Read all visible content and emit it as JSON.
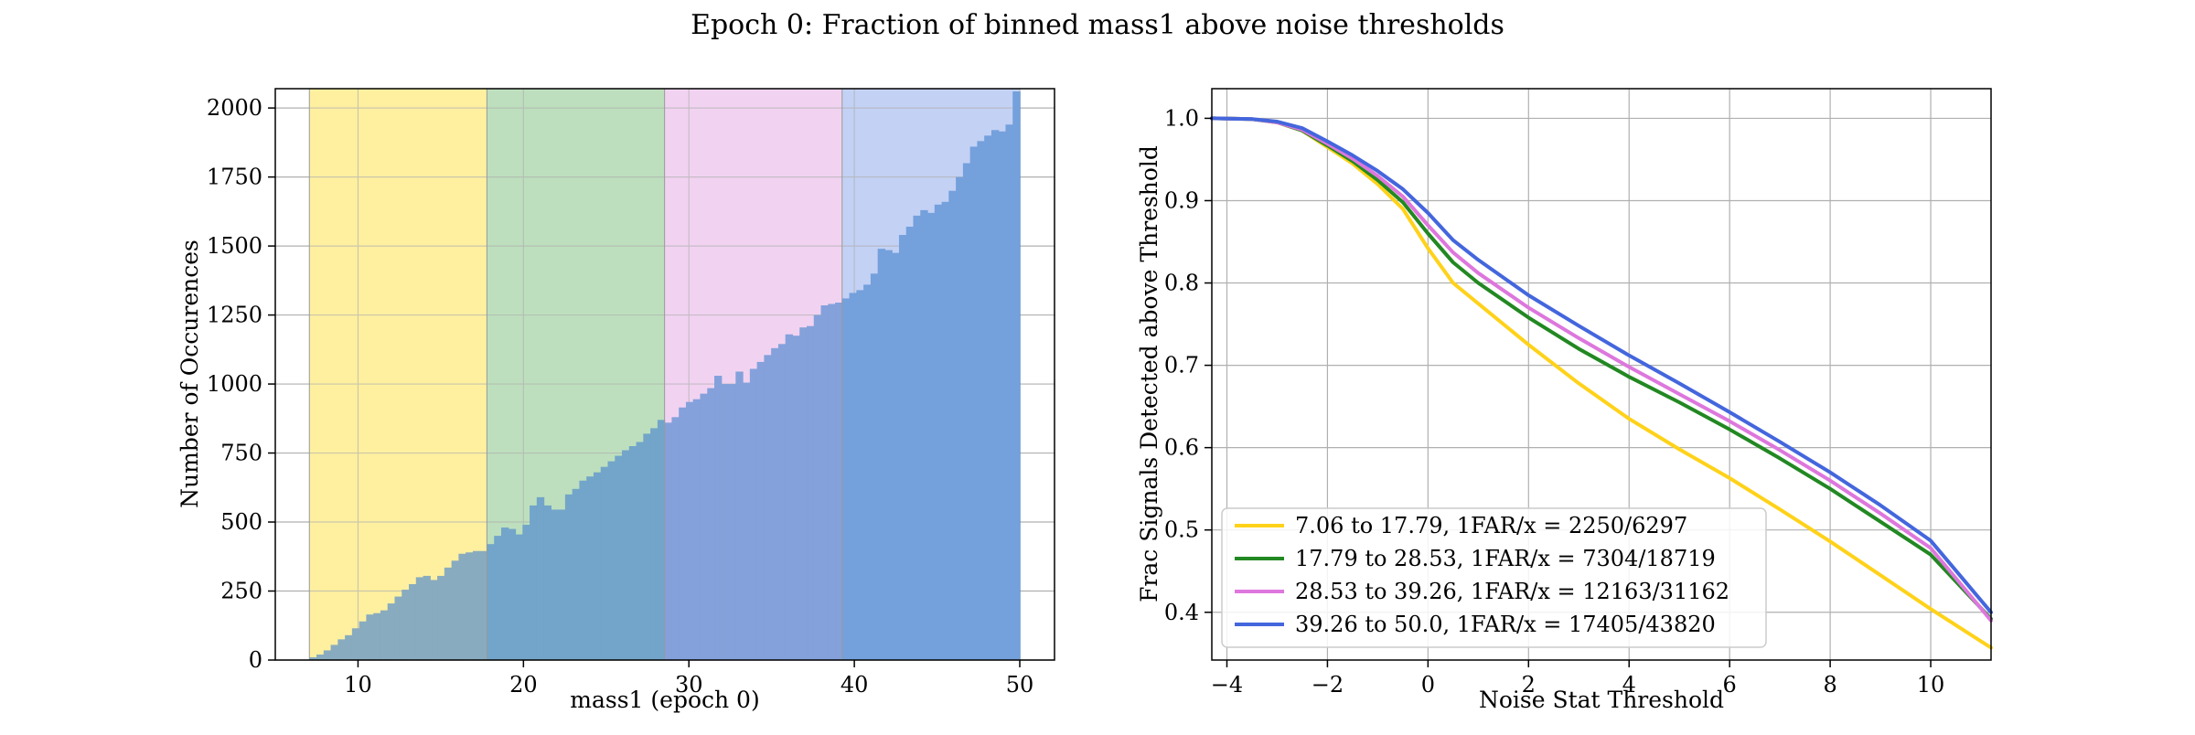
{
  "title": "Epoch 0: Fraction of binned mass1 above noise thresholds",
  "chart_data": [
    {
      "type": "bar",
      "subtype": "histogram",
      "xlabel": "mass1 (epoch 0)",
      "ylabel": "Number of Occurences",
      "xlim": [
        5.0,
        52.1
      ],
      "ylim": [
        0,
        2070
      ],
      "xticks": [
        "10",
        "20",
        "30",
        "40",
        "50"
      ],
      "yticks": [
        "0",
        "250",
        "500",
        "750",
        "1000",
        "1250",
        "1500",
        "1750",
        "2000"
      ],
      "grid": true,
      "bin_range": [
        7.06,
        50.0
      ],
      "bin_count": 100,
      "bar_color": "#4a86cf",
      "values": [
        10,
        20,
        35,
        55,
        75,
        90,
        115,
        140,
        165,
        170,
        180,
        205,
        230,
        255,
        275,
        300,
        305,
        290,
        305,
        335,
        360,
        385,
        390,
        395,
        395,
        420,
        450,
        480,
        475,
        455,
        490,
        560,
        590,
        560,
        545,
        545,
        600,
        620,
        650,
        665,
        680,
        700,
        720,
        740,
        760,
        775,
        790,
        820,
        840,
        870,
        860,
        880,
        915,
        935,
        945,
        965,
        985,
        1030,
        1000,
        1000,
        1045,
        1005,
        1055,
        1080,
        1105,
        1130,
        1145,
        1180,
        1175,
        1205,
        1210,
        1250,
        1285,
        1290,
        1295,
        1310,
        1330,
        1340,
        1360,
        1400,
        1490,
        1485,
        1475,
        1540,
        1570,
        1610,
        1630,
        1620,
        1650,
        1660,
        1700,
        1750,
        1800,
        1860,
        1880,
        1900,
        1920,
        1915,
        1940,
        2060
      ],
      "bands": [
        {
          "range": [
            7.06,
            17.79
          ],
          "color": "#fff0a0"
        },
        {
          "range": [
            17.79,
            28.53
          ],
          "color": "#bedfbe"
        },
        {
          "range": [
            28.53,
            39.26
          ],
          "color": "#f2d3f2"
        },
        {
          "range": [
            39.26,
            50.0
          ],
          "color": "#c4d1f4"
        }
      ]
    },
    {
      "type": "line",
      "xlabel": "Noise Stat Threshold",
      "ylabel": "Frac Signals Detected above Threshold",
      "xlim": [
        -4.3,
        11.2
      ],
      "ylim": [
        0.342,
        1.036
      ],
      "xticks": [
        "−4",
        "−2",
        "0",
        "2",
        "4",
        "6",
        "8",
        "10"
      ],
      "yticks": [
        "0.4",
        "0.5",
        "0.6",
        "0.7",
        "0.8",
        "0.9",
        "1.0"
      ],
      "grid": true,
      "legend_position": "lower-left",
      "series": [
        {
          "name": "7.06 to 17.79, 1FAR/x = 2250/6297",
          "color": "#ffd21a",
          "x": [
            -4.3,
            -3.5,
            -3.0,
            -2.5,
            -2.0,
            -1.5,
            -1.0,
            -0.5,
            0.0,
            0.5,
            1.0,
            2.0,
            3.0,
            4.0,
            5.0,
            6.0,
            7.0,
            8.0,
            9.0,
            10.0,
            11.2
          ],
          "y": [
            1.0,
            0.999,
            0.995,
            0.985,
            0.965,
            0.945,
            0.92,
            0.89,
            0.842,
            0.8,
            0.775,
            0.725,
            0.678,
            0.635,
            0.598,
            0.563,
            0.525,
            0.486,
            0.445,
            0.404,
            0.357
          ]
        },
        {
          "name": "17.79 to 28.53, 1FAR/x = 7304/18719",
          "color": "#228822",
          "x": [
            -4.3,
            -3.5,
            -3.0,
            -2.5,
            -2.0,
            -1.5,
            -1.0,
            -0.5,
            0.0,
            0.5,
            1.0,
            2.0,
            3.0,
            4.0,
            5.0,
            6.0,
            7.0,
            8.0,
            9.0,
            10.0,
            11.2
          ],
          "y": [
            1.0,
            0.999,
            0.995,
            0.985,
            0.967,
            0.948,
            0.925,
            0.898,
            0.86,
            0.825,
            0.8,
            0.758,
            0.72,
            0.686,
            0.655,
            0.622,
            0.587,
            0.55,
            0.51,
            0.47,
            0.392
          ]
        },
        {
          "name": "28.53 to 39.26, 1FAR/x = 12163/31162",
          "color": "#dd77dd",
          "x": [
            -4.3,
            -3.5,
            -3.0,
            -2.5,
            -2.0,
            -1.5,
            -1.0,
            -0.5,
            0.0,
            0.5,
            1.0,
            2.0,
            3.0,
            4.0,
            5.0,
            6.0,
            7.0,
            8.0,
            9.0,
            10.0,
            11.2
          ],
          "y": [
            1.0,
            0.999,
            0.995,
            0.986,
            0.969,
            0.951,
            0.93,
            0.905,
            0.87,
            0.837,
            0.812,
            0.77,
            0.733,
            0.698,
            0.665,
            0.632,
            0.597,
            0.56,
            0.52,
            0.478,
            0.39
          ]
        },
        {
          "name": "39.26 to 50.0, 1FAR/x = 17405/43820",
          "color": "#4466dd",
          "x": [
            -4.3,
            -3.5,
            -3.0,
            -2.5,
            -2.0,
            -1.5,
            -1.0,
            -0.5,
            0.0,
            0.5,
            1.0,
            2.0,
            3.0,
            4.0,
            5.0,
            6.0,
            7.0,
            8.0,
            9.0,
            10.0,
            11.2
          ],
          "y": [
            1.0,
            0.999,
            0.996,
            0.988,
            0.972,
            0.955,
            0.936,
            0.914,
            0.885,
            0.852,
            0.828,
            0.785,
            0.748,
            0.712,
            0.678,
            0.643,
            0.607,
            0.57,
            0.53,
            0.487,
            0.4
          ]
        }
      ]
    }
  ]
}
